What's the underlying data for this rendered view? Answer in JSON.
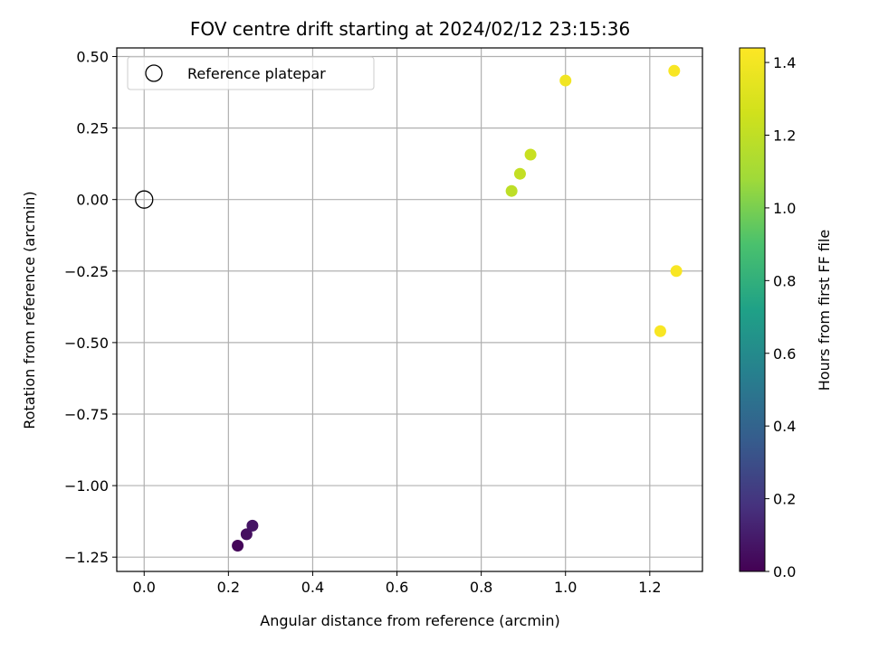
{
  "chart_data": {
    "type": "scatter",
    "title": "FOV centre drift starting at 2024/02/12 23:15:36",
    "xlabel": "Angular distance from reference (arcmin)",
    "ylabel": "Rotation from reference (arcmin)",
    "xlim": [
      -0.065,
      1.325
    ],
    "ylim": [
      -1.3,
      0.53
    ],
    "xticks": [
      "0.0",
      "0.2",
      "0.4",
      "0.6",
      "0.8",
      "1.0",
      "1.2"
    ],
    "xtick_values": [
      0.0,
      0.2,
      0.4,
      0.6,
      0.8,
      1.0,
      1.2
    ],
    "yticks": [
      "0.50",
      "0.25",
      "0.00",
      "−0.25",
      "−0.50",
      "−0.75",
      "−1.00",
      "−1.25"
    ],
    "ytick_values": [
      0.5,
      0.25,
      0.0,
      -0.25,
      -0.5,
      -0.75,
      -1.0,
      -1.25
    ],
    "grid": true,
    "legend": {
      "placement": "top-left",
      "entries": [
        {
          "label": "Reference platepar",
          "marker": "open-circle"
        }
      ]
    },
    "reference_point": {
      "x": 0.0,
      "y": 0.0
    },
    "points": [
      {
        "x": 0.222,
        "y": -1.21,
        "c": 0.02
      },
      {
        "x": 0.243,
        "y": -1.17,
        "c": 0.05
      },
      {
        "x": 0.257,
        "y": -1.14,
        "c": 0.07
      },
      {
        "x": 0.872,
        "y": 0.03,
        "c": 1.19
      },
      {
        "x": 0.892,
        "y": 0.09,
        "c": 1.21
      },
      {
        "x": 0.917,
        "y": 0.157,
        "c": 1.23
      },
      {
        "x": 1.0,
        "y": 0.416,
        "c": 1.39
      },
      {
        "x": 1.258,
        "y": 0.45,
        "c": 1.42
      },
      {
        "x": 1.263,
        "y": -0.25,
        "c": 1.42
      },
      {
        "x": 1.225,
        "y": -0.46,
        "c": 1.42
      }
    ],
    "colorbar": {
      "label": "Hours from first FF file",
      "range": [
        0.0,
        1.44
      ],
      "colormap": "viridis",
      "ticks": [
        "0.0",
        "0.2",
        "0.4",
        "0.6",
        "0.8",
        "1.0",
        "1.2",
        "1.4"
      ],
      "tick_values": [
        0.0,
        0.2,
        0.4,
        0.6,
        0.8,
        1.0,
        1.2,
        1.4
      ]
    }
  }
}
